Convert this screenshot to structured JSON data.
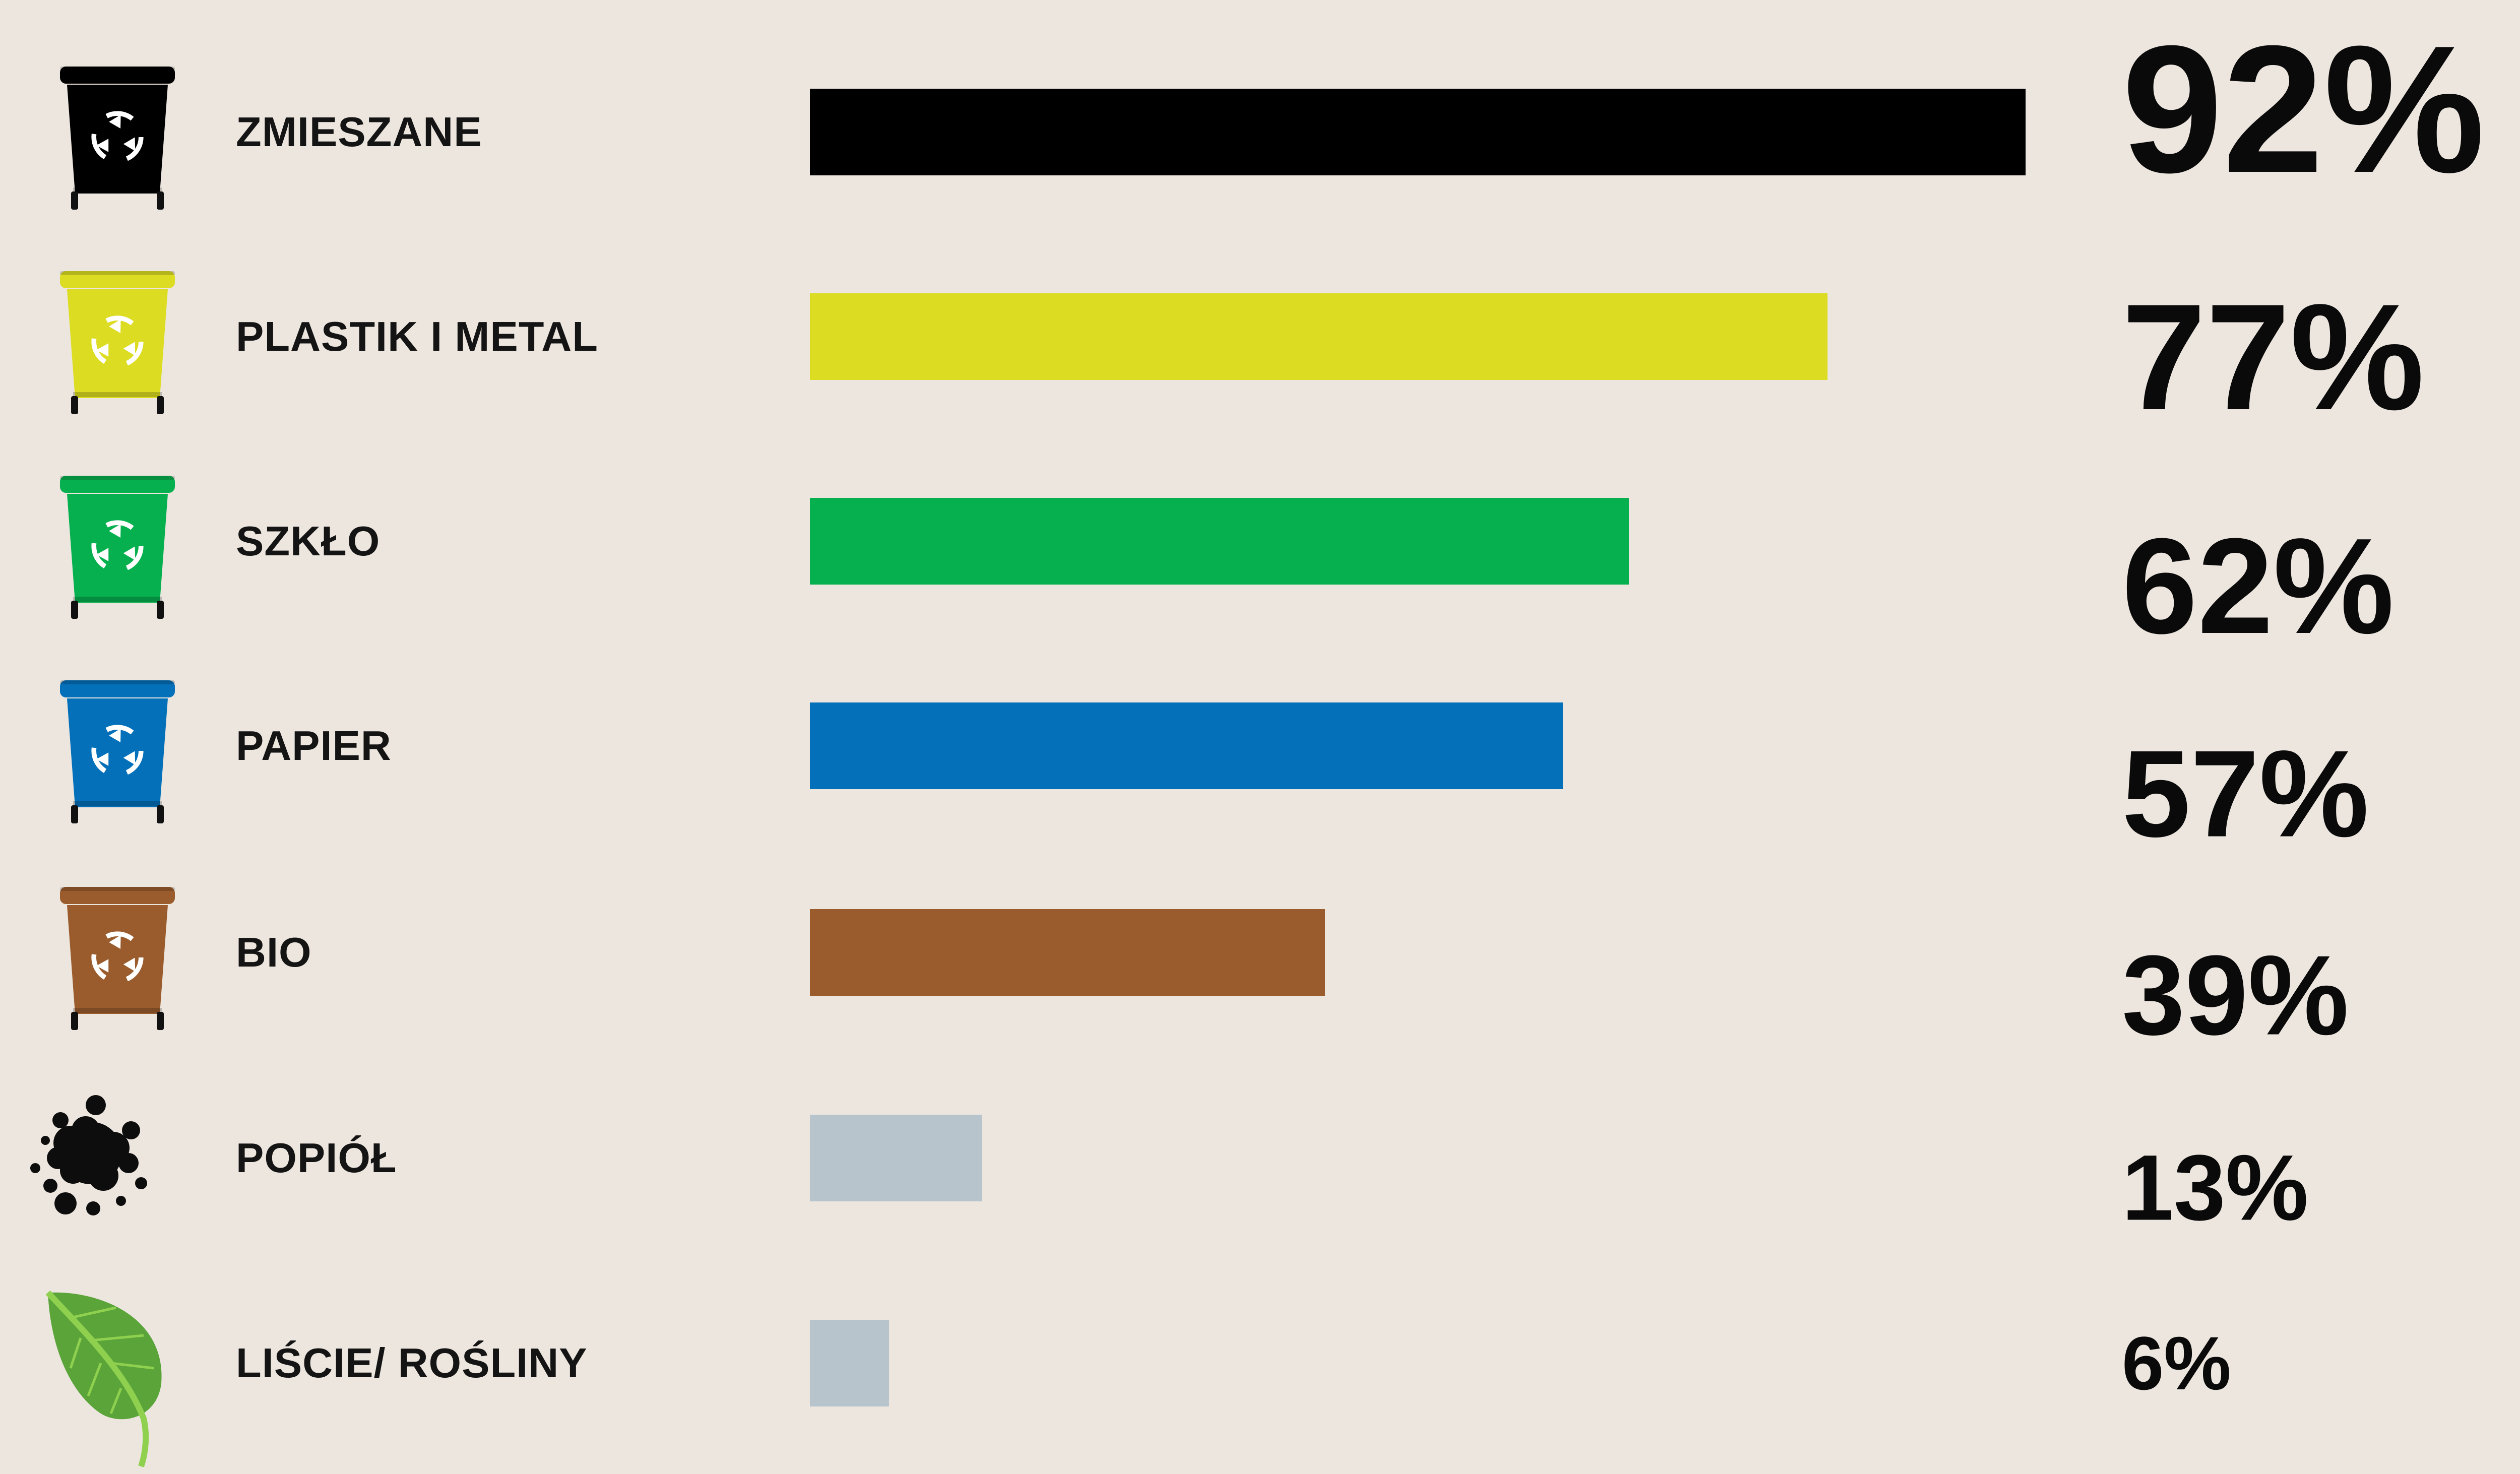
{
  "chart_data": {
    "type": "bar",
    "orientation": "horizontal",
    "title": "",
    "xlabel": "",
    "ylabel": "",
    "xlim": [
      0,
      100
    ],
    "grid": false,
    "legend": "none",
    "categories": [
      "ZMIESZANE",
      "PLASTIK I METAL",
      "SZKŁO",
      "PAPIER",
      "BIO",
      "POPIÓŁ",
      "LIŚCIE/ ROŚLINY"
    ],
    "values": [
      92,
      77,
      62,
      57,
      39,
      13,
      6
    ],
    "value_labels": [
      "92%",
      "77%",
      "62%",
      "57%",
      "39%",
      "13%",
      "6%"
    ],
    "colors": [
      "#000000",
      "#dcdc22",
      "#07b04f",
      "#0370b9",
      "#9a5c2c",
      "#b8c4cb",
      "#b8c4cb"
    ],
    "icons": [
      "black-bin-icon",
      "yellow-bin-icon",
      "green-bin-icon",
      "blue-bin-icon",
      "brown-bin-icon",
      "ash-splatter-icon",
      "leaf-icon"
    ]
  }
}
